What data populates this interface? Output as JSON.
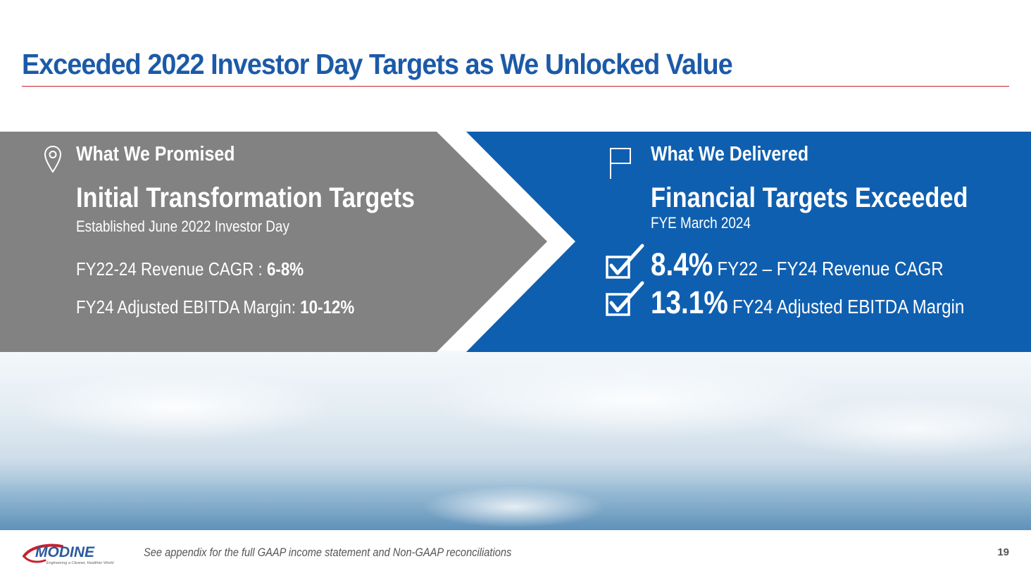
{
  "title": "Exceeded 2022 Investor Day Targets as We Unlocked Value",
  "colors": {
    "title": "#1c5aa8",
    "rule": "#c8202f",
    "left_panel": "#828282",
    "right_panel": "#0f5fb0"
  },
  "promised": {
    "icon": "location-pin-icon",
    "label": "What We Promised",
    "heading": "Initial Transformation Targets",
    "subheading": "Established June 2022 Investor Day",
    "metrics": [
      {
        "label": "FY22-24 Revenue CAGR : ",
        "value": "6-8%"
      },
      {
        "label": "FY24 Adjusted EBITDA Margin: ",
        "value": "10-12%"
      }
    ]
  },
  "delivered": {
    "icon": "flag-icon",
    "label": "What We Delivered",
    "heading": "Financial Targets Exceeded",
    "subheading": "FYE March 2024",
    "results": [
      {
        "icon": "checkbox-checked-icon",
        "value": "8.4%",
        "description": "FY22 – FY24  Revenue CAGR"
      },
      {
        "icon": "checkbox-checked-icon",
        "value": "13.1%",
        "description": "FY24  Adjusted EBITDA Margin"
      }
    ]
  },
  "footer": {
    "logo_text": "MODINE",
    "logo_tagline": "Engineering a Cleaner, Healthier World",
    "note": "See appendix for the full GAAP income statement and Non-GAAP reconciliations",
    "page_number": "19"
  }
}
